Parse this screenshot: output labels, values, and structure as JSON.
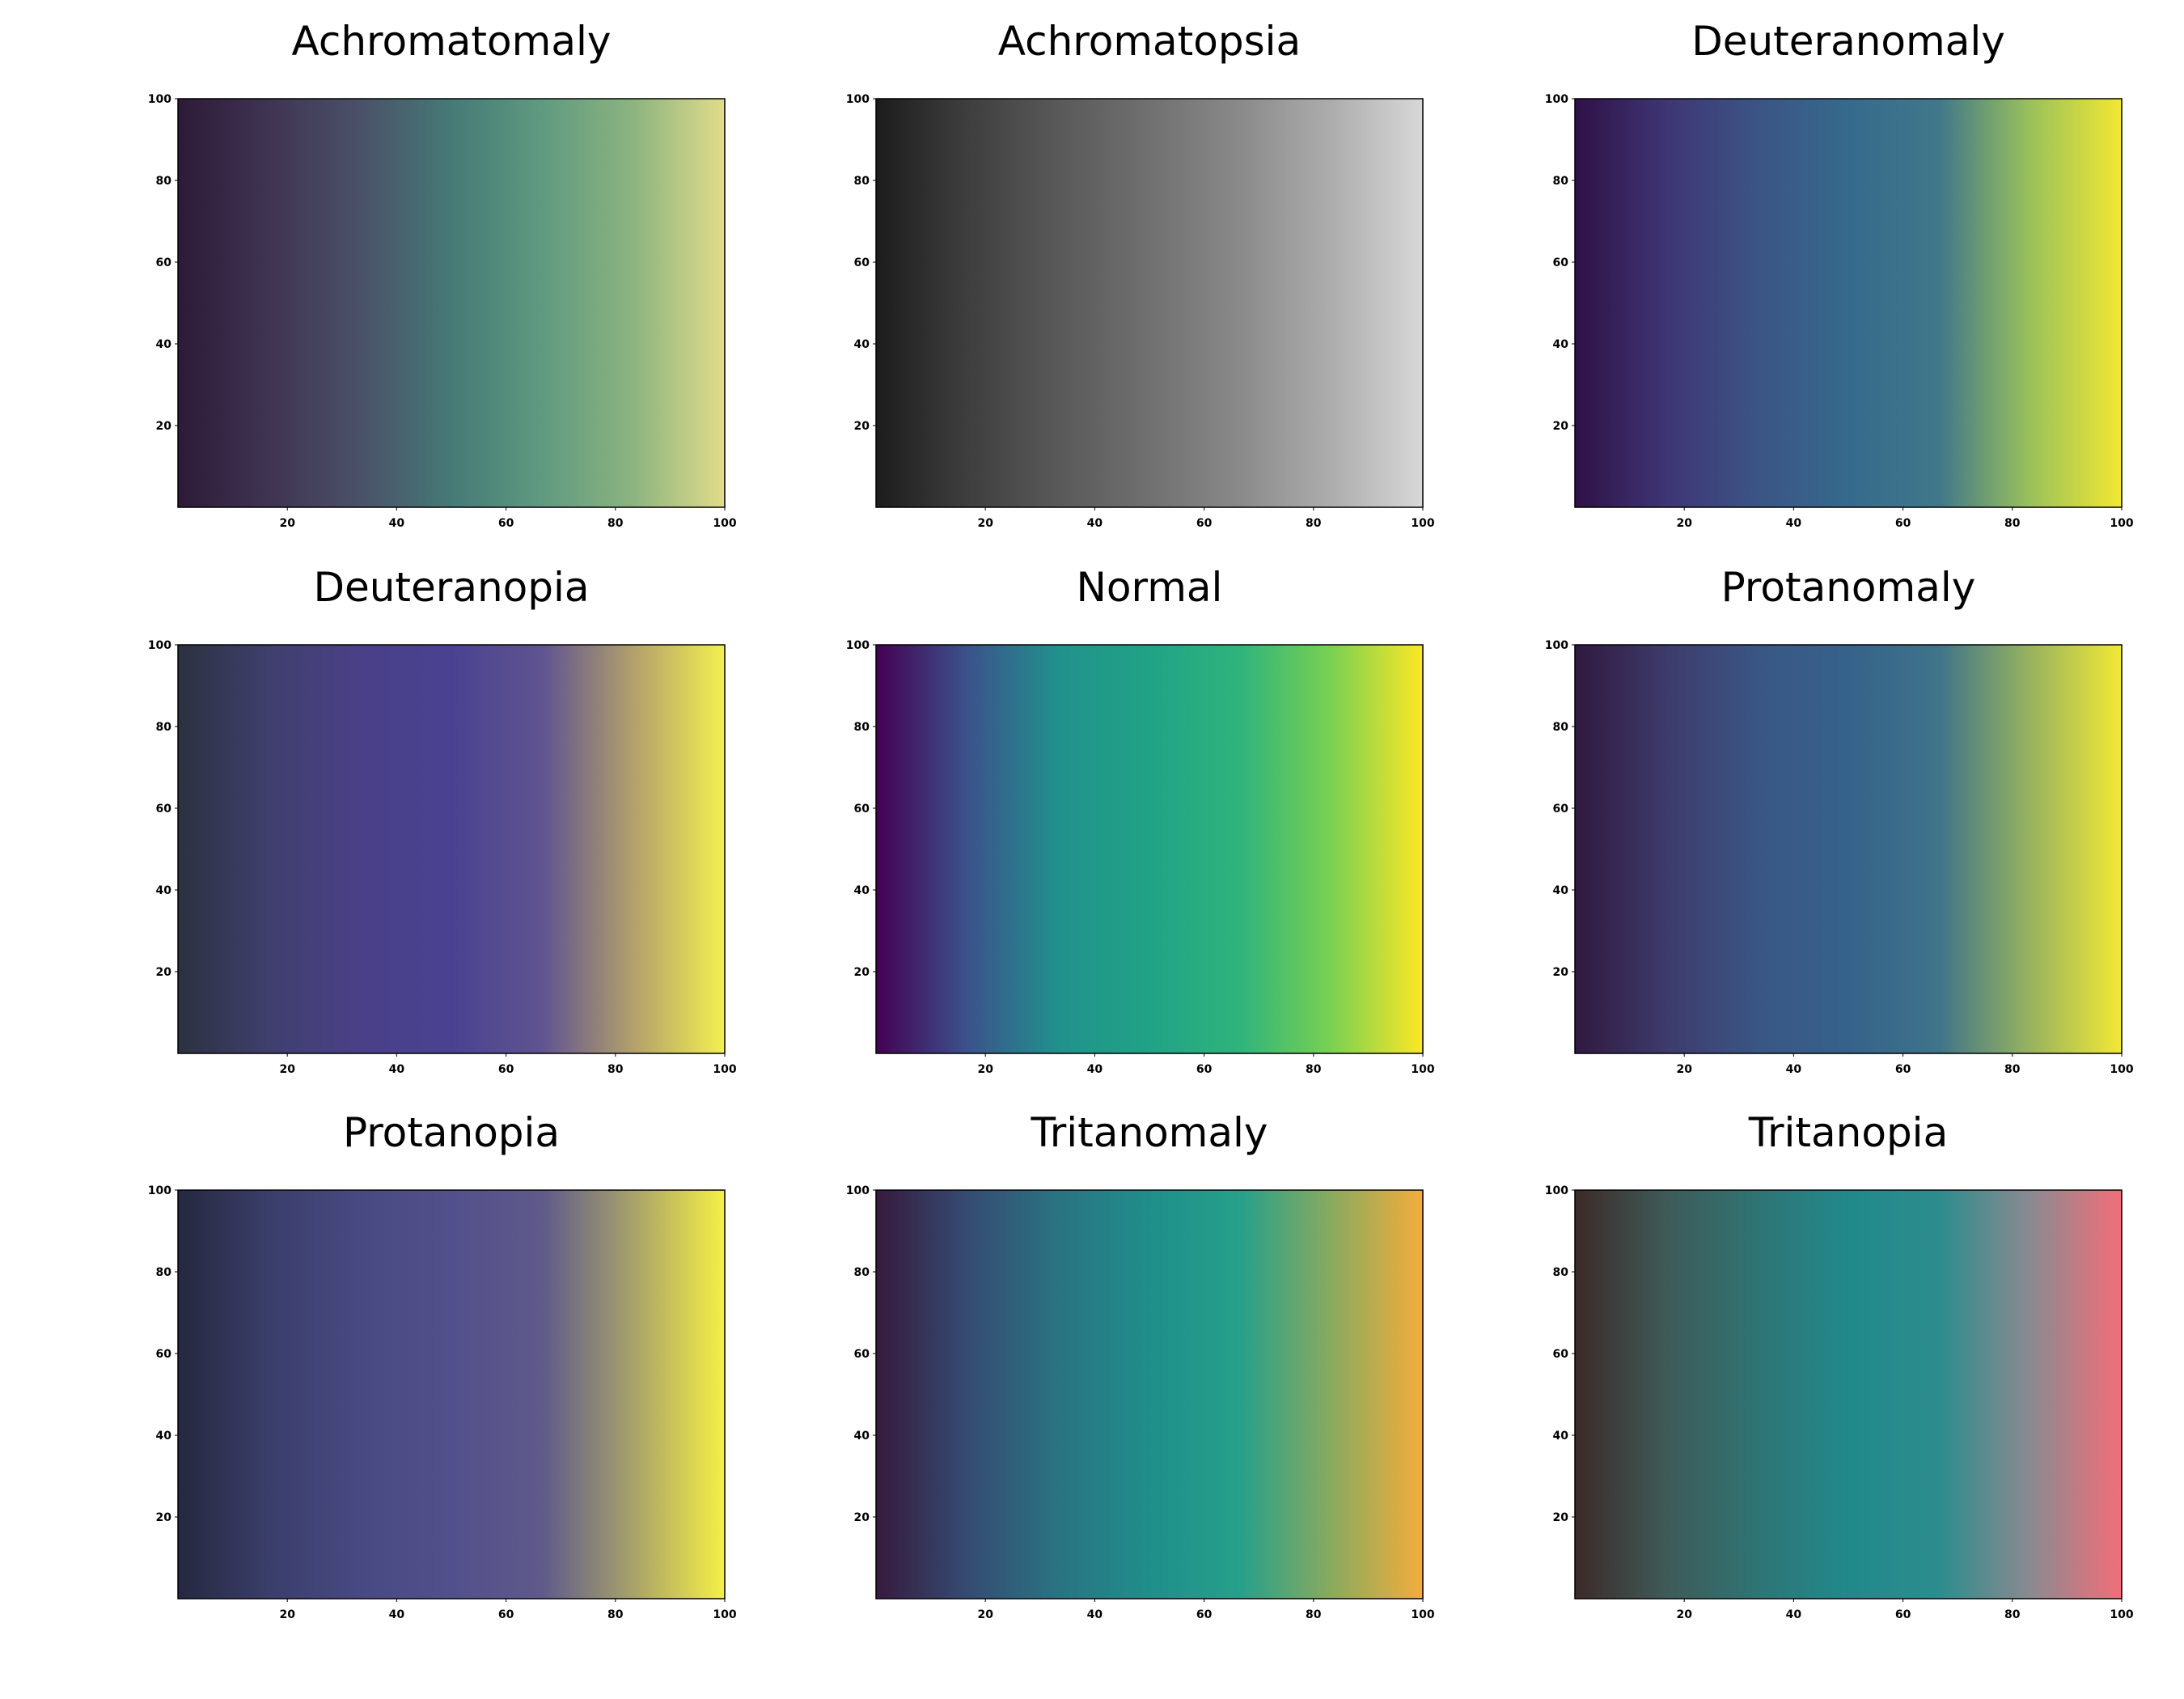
{
  "figure": {
    "background": "#ffffff"
  },
  "chart_data": [
    {
      "type": "heatmap",
      "title": "Achromatomaly",
      "xlabel": "",
      "ylabel": "",
      "xlim": [
        0,
        100
      ],
      "ylim": [
        0,
        100
      ],
      "xticks": [
        20,
        40,
        60,
        80,
        100
      ],
      "yticks": [
        20,
        40,
        60,
        80,
        100
      ],
      "grid": false,
      "gradient_direction": "left-to-right",
      "color_stops": [
        "#2c1a38",
        "#3f3451",
        "#4a5168",
        "#457a76",
        "#5f9a80",
        "#8cb47f",
        "#e1dc8a"
      ]
    },
    {
      "type": "heatmap",
      "title": "Achromatopsia",
      "xlabel": "",
      "ylabel": "",
      "xlim": [
        0,
        100
      ],
      "ylim": [
        0,
        100
      ],
      "xticks": [
        20,
        40,
        60,
        80,
        100
      ],
      "yticks": [
        20,
        40,
        60,
        80,
        100
      ],
      "grid": false,
      "gradient_direction": "left-to-right",
      "color_stops": [
        "#1c1c1c",
        "#3e3e3e",
        "#595959",
        "#707070",
        "#8a8a8a",
        "#adadad",
        "#d8d8d8"
      ]
    },
    {
      "type": "heatmap",
      "title": "Deuteranomaly",
      "xlabel": "",
      "ylabel": "",
      "xlim": [
        0,
        100
      ],
      "ylim": [
        0,
        100
      ],
      "xticks": [
        20,
        40,
        60,
        80,
        100
      ],
      "yticks": [
        20,
        40,
        60,
        80,
        100
      ],
      "grid": false,
      "gradient_direction": "left-to-right",
      "color_stops": [
        "#2f1146",
        "#3e3575",
        "#3b5485",
        "#366a8c",
        "#40788a",
        "#9bc15a",
        "#f2e832"
      ]
    },
    {
      "type": "heatmap",
      "title": "Deuteranopia",
      "xlabel": "",
      "ylabel": "",
      "xlim": [
        0,
        100
      ],
      "ylim": [
        0,
        100
      ],
      "xticks": [
        20,
        40,
        60,
        80,
        100
      ],
      "yticks": [
        20,
        40,
        60,
        80,
        100
      ],
      "grid": false,
      "gradient_direction": "left-to-right",
      "color_stops": [
        "#2c3140",
        "#3f3f6e",
        "#4a4088",
        "#4a4291",
        "#5f5490",
        "#b3a06b",
        "#f3f050"
      ]
    },
    {
      "type": "heatmap",
      "title": "Normal",
      "xlabel": "",
      "ylabel": "",
      "xlim": [
        0,
        100
      ],
      "ylim": [
        0,
        100
      ],
      "xticks": [
        20,
        40,
        60,
        80,
        100
      ],
      "yticks": [
        20,
        40,
        60,
        80,
        100
      ],
      "grid": false,
      "gradient_direction": "left-to-right",
      "color_stops": [
        "#440154",
        "#3b528b",
        "#21918c",
        "#20a386",
        "#2fb47c",
        "#7ad151",
        "#fde725"
      ]
    },
    {
      "type": "heatmap",
      "title": "Protanomaly",
      "xlabel": "",
      "ylabel": "",
      "xlim": [
        0,
        100
      ],
      "ylim": [
        0,
        100
      ],
      "xticks": [
        20,
        40,
        60,
        80,
        100
      ],
      "yticks": [
        20,
        40,
        60,
        80,
        100
      ],
      "grid": false,
      "gradient_direction": "left-to-right",
      "color_stops": [
        "#30193f",
        "#3d3b6c",
        "#3a5684",
        "#35628b",
        "#3f7489",
        "#98b35f",
        "#f3e935"
      ]
    },
    {
      "type": "heatmap",
      "title": "Protanopia",
      "xlabel": "",
      "ylabel": "",
      "xlim": [
        0,
        100
      ],
      "ylim": [
        0,
        100
      ],
      "xticks": [
        20,
        40,
        60,
        80,
        100
      ],
      "yticks": [
        20,
        40,
        60,
        80,
        100
      ],
      "grid": false,
      "gradient_direction": "left-to-right",
      "color_stops": [
        "#25283f",
        "#3a3e6a",
        "#484982",
        "#52508c",
        "#5f5a8a",
        "#a8a26a",
        "#f5f045"
      ]
    },
    {
      "type": "heatmap",
      "title": "Tritanomaly",
      "xlabel": "",
      "ylabel": "",
      "xlim": [
        0,
        100
      ],
      "ylim": [
        0,
        100
      ],
      "xticks": [
        20,
        40,
        60,
        80,
        100
      ],
      "yticks": [
        20,
        40,
        60,
        80,
        100
      ],
      "grid": false,
      "gradient_direction": "left-to-right",
      "color_stops": [
        "#361a3e",
        "#354b72",
        "#2a7382",
        "#1f8f8a",
        "#26a08a",
        "#8aaa5e",
        "#f4ad3c"
      ]
    },
    {
      "type": "heatmap",
      "title": "Tritanopia",
      "xlabel": "",
      "ylabel": "",
      "xlim": [
        0,
        100
      ],
      "ylim": [
        0,
        100
      ],
      "xticks": [
        20,
        40,
        60,
        80,
        100
      ],
      "yticks": [
        20,
        40,
        60,
        80,
        100
      ],
      "grid": false,
      "gradient_direction": "left-to-right",
      "color_stops": [
        "#3c2a28",
        "#3e5a58",
        "#2f7474",
        "#21898b",
        "#2d8c8d",
        "#8a8a90",
        "#f26e78"
      ]
    }
  ]
}
